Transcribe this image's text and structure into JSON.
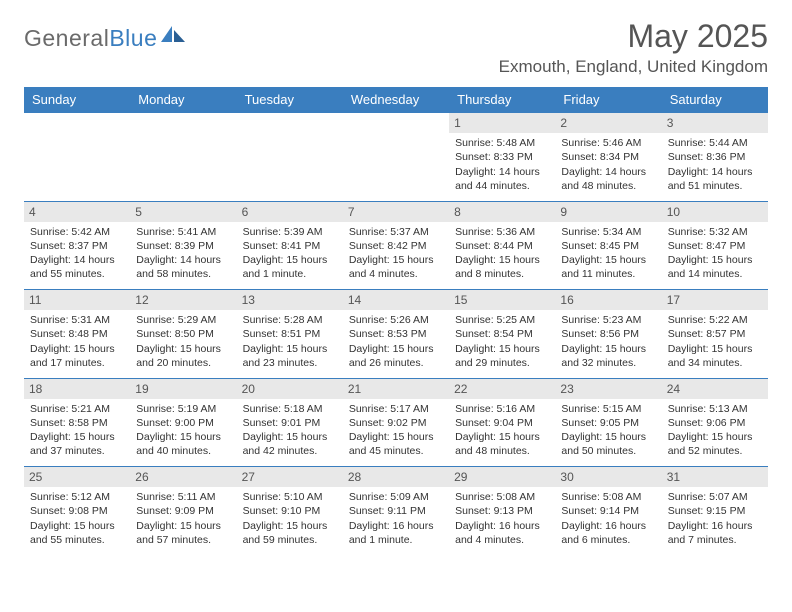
{
  "brand": {
    "name_part1": "General",
    "name_part2": "Blue"
  },
  "title": "May 2025",
  "location": "Exmouth, England, United Kingdom",
  "colors": {
    "header_bg": "#3a7ebf",
    "header_text": "#ffffff",
    "daynum_bg": "#e8e8e8",
    "text": "#333333",
    "title_text": "#555555",
    "border": "#3a7ebf"
  },
  "weekdays": [
    "Sunday",
    "Monday",
    "Tuesday",
    "Wednesday",
    "Thursday",
    "Friday",
    "Saturday"
  ],
  "weeks": [
    [
      null,
      null,
      null,
      null,
      {
        "day": "1",
        "sunrise": "Sunrise: 5:48 AM",
        "sunset": "Sunset: 8:33 PM",
        "daylight": "Daylight: 14 hours and 44 minutes."
      },
      {
        "day": "2",
        "sunrise": "Sunrise: 5:46 AM",
        "sunset": "Sunset: 8:34 PM",
        "daylight": "Daylight: 14 hours and 48 minutes."
      },
      {
        "day": "3",
        "sunrise": "Sunrise: 5:44 AM",
        "sunset": "Sunset: 8:36 PM",
        "daylight": "Daylight: 14 hours and 51 minutes."
      }
    ],
    [
      {
        "day": "4",
        "sunrise": "Sunrise: 5:42 AM",
        "sunset": "Sunset: 8:37 PM",
        "daylight": "Daylight: 14 hours and 55 minutes."
      },
      {
        "day": "5",
        "sunrise": "Sunrise: 5:41 AM",
        "sunset": "Sunset: 8:39 PM",
        "daylight": "Daylight: 14 hours and 58 minutes."
      },
      {
        "day": "6",
        "sunrise": "Sunrise: 5:39 AM",
        "sunset": "Sunset: 8:41 PM",
        "daylight": "Daylight: 15 hours and 1 minute."
      },
      {
        "day": "7",
        "sunrise": "Sunrise: 5:37 AM",
        "sunset": "Sunset: 8:42 PM",
        "daylight": "Daylight: 15 hours and 4 minutes."
      },
      {
        "day": "8",
        "sunrise": "Sunrise: 5:36 AM",
        "sunset": "Sunset: 8:44 PM",
        "daylight": "Daylight: 15 hours and 8 minutes."
      },
      {
        "day": "9",
        "sunrise": "Sunrise: 5:34 AM",
        "sunset": "Sunset: 8:45 PM",
        "daylight": "Daylight: 15 hours and 11 minutes."
      },
      {
        "day": "10",
        "sunrise": "Sunrise: 5:32 AM",
        "sunset": "Sunset: 8:47 PM",
        "daylight": "Daylight: 15 hours and 14 minutes."
      }
    ],
    [
      {
        "day": "11",
        "sunrise": "Sunrise: 5:31 AM",
        "sunset": "Sunset: 8:48 PM",
        "daylight": "Daylight: 15 hours and 17 minutes."
      },
      {
        "day": "12",
        "sunrise": "Sunrise: 5:29 AM",
        "sunset": "Sunset: 8:50 PM",
        "daylight": "Daylight: 15 hours and 20 minutes."
      },
      {
        "day": "13",
        "sunrise": "Sunrise: 5:28 AM",
        "sunset": "Sunset: 8:51 PM",
        "daylight": "Daylight: 15 hours and 23 minutes."
      },
      {
        "day": "14",
        "sunrise": "Sunrise: 5:26 AM",
        "sunset": "Sunset: 8:53 PM",
        "daylight": "Daylight: 15 hours and 26 minutes."
      },
      {
        "day": "15",
        "sunrise": "Sunrise: 5:25 AM",
        "sunset": "Sunset: 8:54 PM",
        "daylight": "Daylight: 15 hours and 29 minutes."
      },
      {
        "day": "16",
        "sunrise": "Sunrise: 5:23 AM",
        "sunset": "Sunset: 8:56 PM",
        "daylight": "Daylight: 15 hours and 32 minutes."
      },
      {
        "day": "17",
        "sunrise": "Sunrise: 5:22 AM",
        "sunset": "Sunset: 8:57 PM",
        "daylight": "Daylight: 15 hours and 34 minutes."
      }
    ],
    [
      {
        "day": "18",
        "sunrise": "Sunrise: 5:21 AM",
        "sunset": "Sunset: 8:58 PM",
        "daylight": "Daylight: 15 hours and 37 minutes."
      },
      {
        "day": "19",
        "sunrise": "Sunrise: 5:19 AM",
        "sunset": "Sunset: 9:00 PM",
        "daylight": "Daylight: 15 hours and 40 minutes."
      },
      {
        "day": "20",
        "sunrise": "Sunrise: 5:18 AM",
        "sunset": "Sunset: 9:01 PM",
        "daylight": "Daylight: 15 hours and 42 minutes."
      },
      {
        "day": "21",
        "sunrise": "Sunrise: 5:17 AM",
        "sunset": "Sunset: 9:02 PM",
        "daylight": "Daylight: 15 hours and 45 minutes."
      },
      {
        "day": "22",
        "sunrise": "Sunrise: 5:16 AM",
        "sunset": "Sunset: 9:04 PM",
        "daylight": "Daylight: 15 hours and 48 minutes."
      },
      {
        "day": "23",
        "sunrise": "Sunrise: 5:15 AM",
        "sunset": "Sunset: 9:05 PM",
        "daylight": "Daylight: 15 hours and 50 minutes."
      },
      {
        "day": "24",
        "sunrise": "Sunrise: 5:13 AM",
        "sunset": "Sunset: 9:06 PM",
        "daylight": "Daylight: 15 hours and 52 minutes."
      }
    ],
    [
      {
        "day": "25",
        "sunrise": "Sunrise: 5:12 AM",
        "sunset": "Sunset: 9:08 PM",
        "daylight": "Daylight: 15 hours and 55 minutes."
      },
      {
        "day": "26",
        "sunrise": "Sunrise: 5:11 AM",
        "sunset": "Sunset: 9:09 PM",
        "daylight": "Daylight: 15 hours and 57 minutes."
      },
      {
        "day": "27",
        "sunrise": "Sunrise: 5:10 AM",
        "sunset": "Sunset: 9:10 PM",
        "daylight": "Daylight: 15 hours and 59 minutes."
      },
      {
        "day": "28",
        "sunrise": "Sunrise: 5:09 AM",
        "sunset": "Sunset: 9:11 PM",
        "daylight": "Daylight: 16 hours and 1 minute."
      },
      {
        "day": "29",
        "sunrise": "Sunrise: 5:08 AM",
        "sunset": "Sunset: 9:13 PM",
        "daylight": "Daylight: 16 hours and 4 minutes."
      },
      {
        "day": "30",
        "sunrise": "Sunrise: 5:08 AM",
        "sunset": "Sunset: 9:14 PM",
        "daylight": "Daylight: 16 hours and 6 minutes."
      },
      {
        "day": "31",
        "sunrise": "Sunrise: 5:07 AM",
        "sunset": "Sunset: 9:15 PM",
        "daylight": "Daylight: 16 hours and 7 minutes."
      }
    ]
  ]
}
